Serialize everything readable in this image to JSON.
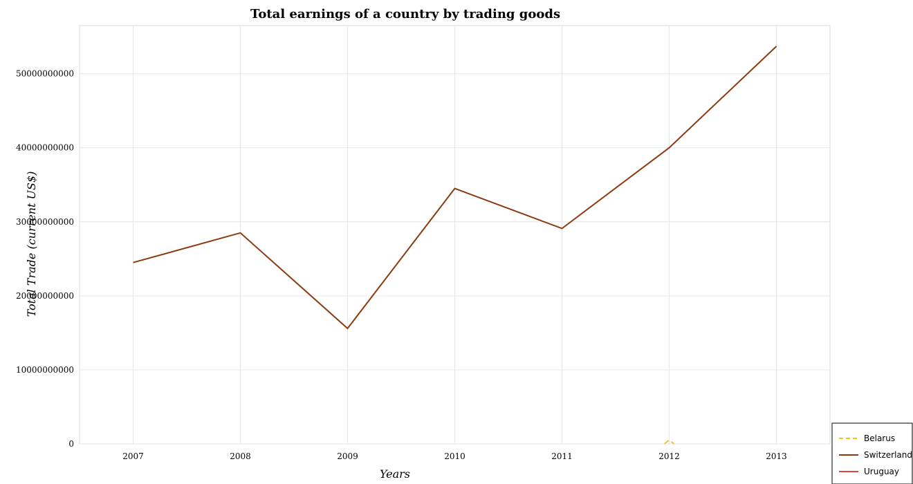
{
  "chart_data": {
    "type": "line",
    "title": "Total earnings of a country by trading goods",
    "xlabel": "Years",
    "ylabel": "Total Trade (current US$)",
    "categories": [
      "2007",
      "2008",
      "2009",
      "2010",
      "2011",
      "2012",
      "2013"
    ],
    "ylim": [
      0,
      56500000000
    ],
    "yticks": [
      0,
      10000000000,
      20000000000,
      30000000000,
      40000000000,
      50000000000
    ],
    "ytick_labels": [
      "0",
      "10000000000",
      "20000000000",
      "30000000000",
      "40000000000",
      "50000000000"
    ],
    "grid": true,
    "legend_position": "bottom-right",
    "series": [
      {
        "name": "Belarus",
        "color": "#f5c518",
        "dash": "dashed",
        "values": [
          null,
          null,
          null,
          null,
          null,
          540000000,
          null
        ]
      },
      {
        "name": "Switzerland",
        "color": "#8b3a0f",
        "dash": "solid",
        "values": [
          24500000000,
          28500000000,
          15600000000,
          34500000000,
          29100000000,
          40000000000,
          53700000000
        ]
      },
      {
        "name": "Uruguay",
        "color": "#e0453a",
        "dash": "solid",
        "values": [
          null,
          null,
          null,
          null,
          null,
          null,
          null
        ]
      }
    ]
  }
}
